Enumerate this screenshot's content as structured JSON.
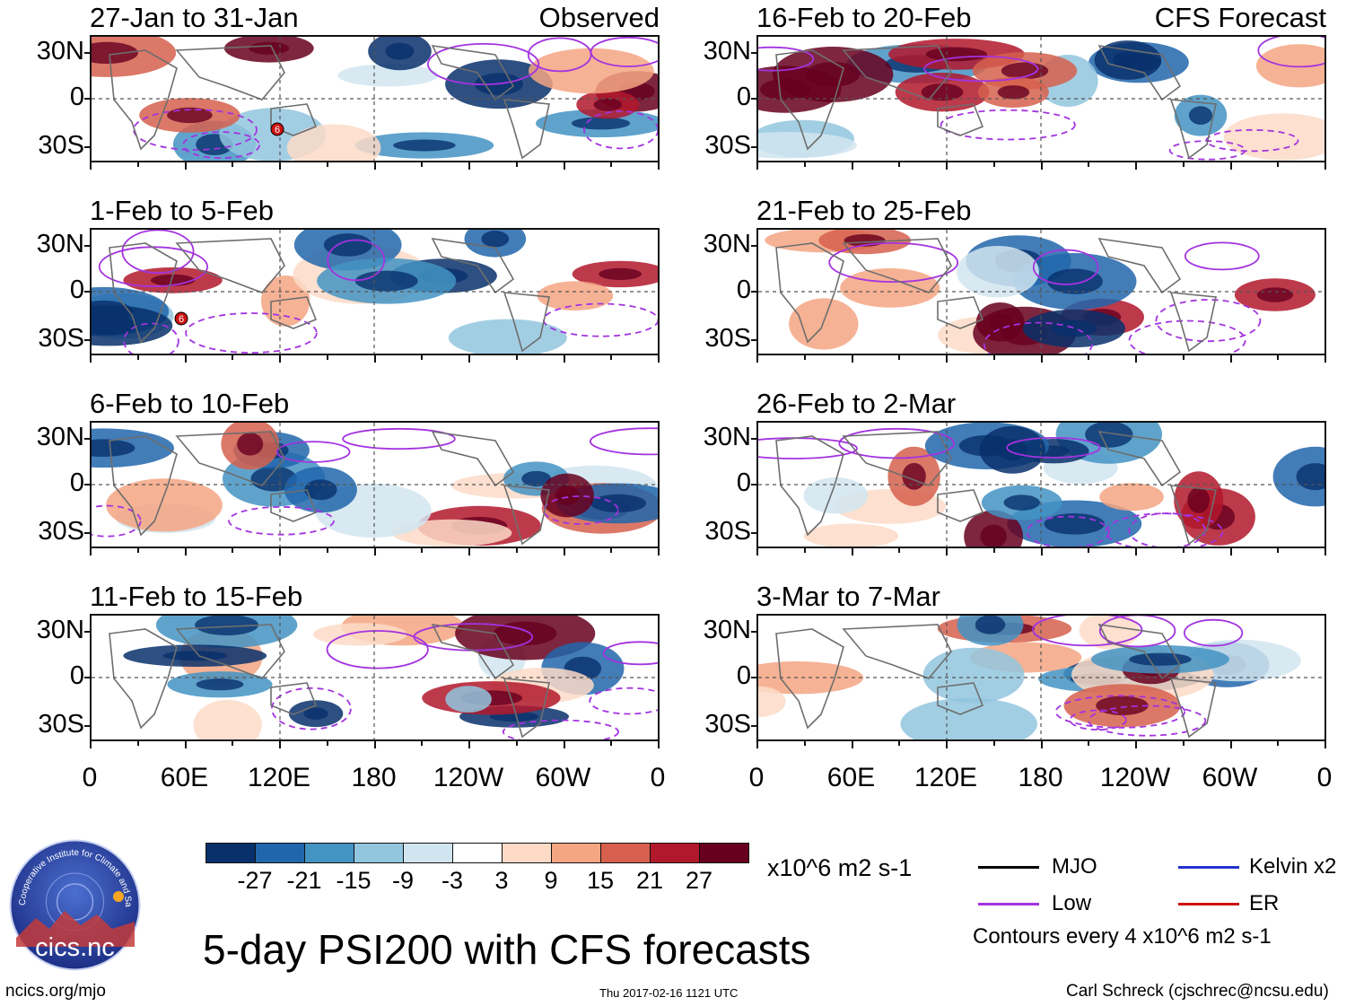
{
  "panels": [
    {
      "title": "27-Jan to 31-Jan",
      "tag": "Observed",
      "col": 0,
      "row": 0,
      "storm": "6"
    },
    {
      "title": "1-Feb to 5-Feb",
      "tag": "",
      "col": 0,
      "row": 1,
      "storm": "6"
    },
    {
      "title": "6-Feb to 10-Feb",
      "tag": "",
      "col": 0,
      "row": 2,
      "storm": ""
    },
    {
      "title": "11-Feb to 15-Feb",
      "tag": "",
      "col": 0,
      "row": 3,
      "storm": ""
    },
    {
      "title": "16-Feb to 20-Feb",
      "tag": "CFS Forecast",
      "col": 1,
      "row": 0,
      "storm": ""
    },
    {
      "title": "21-Feb to 25-Feb",
      "tag": "",
      "col": 1,
      "row": 1,
      "storm": ""
    },
    {
      "title": "26-Feb to 2-Mar",
      "tag": "",
      "col": 1,
      "row": 2,
      "storm": ""
    },
    {
      "title": "3-Mar to 7-Mar",
      "tag": "",
      "col": 1,
      "row": 3,
      "storm": ""
    }
  ],
  "lat_labels": [
    "30N",
    "0",
    "30S"
  ],
  "lon_labels": [
    "0",
    "60E",
    "120E",
    "180",
    "120W",
    "60W",
    "0"
  ],
  "colorbar": {
    "colors": [
      "#08306b",
      "#2166ac",
      "#4393c3",
      "#92c5de",
      "#d1e5f0",
      "#ffffff",
      "#fddbc7",
      "#f4a582",
      "#d6604d",
      "#b2182b",
      "#67001f"
    ],
    "labels": [
      "-27",
      "-21",
      "-15",
      "-9",
      "-3",
      "3",
      "9",
      "15",
      "21",
      "27"
    ],
    "units": "x10^6 m2 s-1"
  },
  "legend": {
    "items": [
      {
        "label": "MJO",
        "color": "#000000"
      },
      {
        "label": "Kelvin x2",
        "color": "#2233cc"
      },
      {
        "label": "Low",
        "color": "#a333e0"
      },
      {
        "label": "ER",
        "color": "#cc1111"
      }
    ],
    "contours_note": "Contours every 4 x10^6 m2 s-1"
  },
  "logo_text": "cics.nc",
  "logo_ring_text": "Cooperative Institute for Climate and Satellites",
  "main_title": "5-day PSI200 with CFS forecasts",
  "footer": {
    "left": "ncics.org/mjo",
    "center": "Thu 2017-02-16 1121 UTC",
    "right": "Carl Schreck (cjschrec@ncsu.edu)"
  }
}
